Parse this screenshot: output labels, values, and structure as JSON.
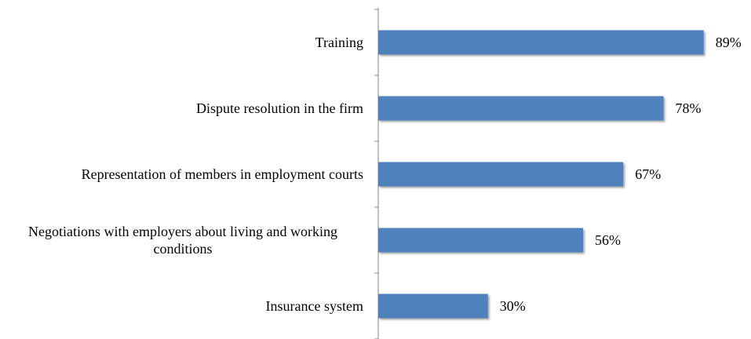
{
  "chart_data": {
    "type": "hbar",
    "categories": [
      "Training",
      "Dispute resolution in the firm",
      "Representation of members in employment courts",
      "Negotiations with employers about living and working conditions",
      "Insurance system"
    ],
    "values": [
      89,
      78,
      67,
      56,
      30
    ],
    "value_labels": [
      "89%",
      "78%",
      "67%",
      "56%",
      "30%"
    ],
    "color": "#4f81bd",
    "xlim": [
      0,
      100
    ]
  }
}
